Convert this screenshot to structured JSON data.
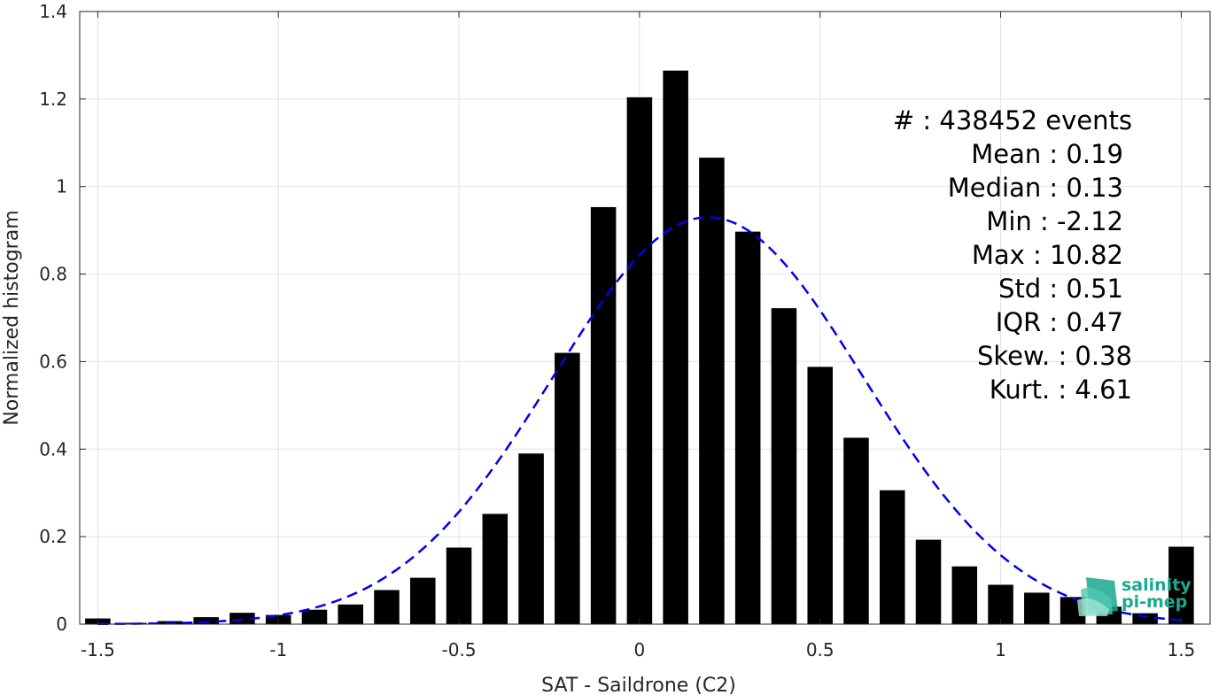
{
  "chart_data": {
    "type": "bar",
    "xlabel": "SAT - Saildrone (C2)",
    "ylabel": "Normalized histogram",
    "xlim": [
      -1.55,
      1.58
    ],
    "ylim": [
      0,
      1.4
    ],
    "grid": true,
    "xticks": [
      -1.5,
      -1,
      -0.5,
      0,
      0.5,
      1,
      1.5
    ],
    "xtick_labels": [
      "-1.5",
      "-1",
      "-0.5",
      "0",
      "0.5",
      "1",
      "1.5"
    ],
    "yticks": [
      0,
      0.2,
      0.4,
      0.6,
      0.8,
      1,
      1.2,
      1.4
    ],
    "ytick_labels": [
      "0",
      "0.2",
      "0.4",
      "0.6",
      "0.8",
      "1",
      "1.2",
      "1.4"
    ],
    "bar_width": 0.07,
    "bars": {
      "x": [
        -1.5,
        -1.4,
        -1.3,
        -1.2,
        -1.1,
        -1.0,
        -0.9,
        -0.8,
        -0.7,
        -0.6,
        -0.5,
        -0.4,
        -0.3,
        -0.2,
        -0.1,
        0.0,
        0.1,
        0.2,
        0.3,
        0.4,
        0.5,
        0.6,
        0.7,
        0.8,
        0.9,
        1.0,
        1.1,
        1.2,
        1.3,
        1.4,
        1.5
      ],
      "values": [
        0.013,
        0.003,
        0.007,
        0.016,
        0.026,
        0.021,
        0.033,
        0.045,
        0.078,
        0.106,
        0.175,
        0.252,
        0.39,
        0.62,
        0.953,
        1.204,
        1.265,
        1.066,
        0.897,
        0.722,
        0.588,
        0.426,
        0.306,
        0.193,
        0.132,
        0.09,
        0.072,
        0.062,
        0.04,
        0.025,
        0.177
      ],
      "color": "#000000"
    },
    "fit_curve": {
      "style": "dashed",
      "color": "#0000ee",
      "mean": 0.19,
      "std": 0.43,
      "peak": 0.93,
      "x_range": [
        -1.5,
        1.5
      ]
    },
    "stats": [
      {
        "label": "#  : 438452 events"
      },
      {
        "label": "Mean : 0.19"
      },
      {
        "label": "Median : 0.13"
      },
      {
        "label": "Min : -2.12"
      },
      {
        "label": "Max : 10.82"
      },
      {
        "label": "Std : 0.51"
      },
      {
        "label": "IQR : 0.47"
      },
      {
        "label": "Skew. : 0.38"
      },
      {
        "label": "Kurt. : 4.61"
      }
    ]
  },
  "logo": {
    "line1": "salinity",
    "line2": "pi-mep",
    "color_primary": "#1aa88f",
    "color_secondary": "#4fc9b0"
  }
}
